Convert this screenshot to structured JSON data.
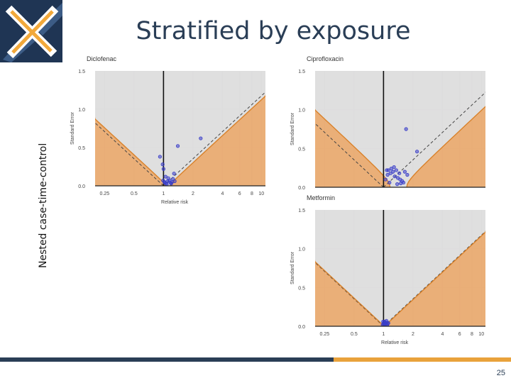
{
  "slide": {
    "title": "Stratified by exposure",
    "side_label": "Nested case-time-control",
    "page_number": "25",
    "colors": {
      "navy": "#2a3e56",
      "accent": "#e9a23b",
      "fill_orange": "#e8a86c",
      "fill_gray": "#dcdcdc",
      "point_blue": "#3a3ec8"
    }
  },
  "chart_data": [
    {
      "type": "scatter",
      "title": "Diclofenac",
      "xlabel": "Relative risk",
      "ylabel": "Standard Error",
      "x_scale": "log",
      "x_ticks": [
        0.25,
        0.5,
        1,
        2,
        4,
        6,
        8,
        10
      ],
      "x_tick_labels": [
        "0.25",
        "0.5",
        "1",
        "2",
        "4",
        "6",
        "8",
        "10"
      ],
      "xlim": [
        0.2,
        11
      ],
      "y_ticks": [
        0.0,
        0.5,
        1.0,
        1.5
      ],
      "y_tick_labels": [
        "0.0",
        "0.5",
        "1.0",
        "1.5"
      ],
      "ylim": [
        0,
        1.5
      ],
      "calibrated_null_log_mean": 0.1,
      "calibrated_null_sd": 0.03,
      "show_x_axis": true,
      "points": [
        [
          0.92,
          0.38
        ],
        [
          0.98,
          0.28
        ],
        [
          1.0,
          0.22
        ],
        [
          1.05,
          0.12
        ],
        [
          0.99,
          0.07
        ],
        [
          1.02,
          0.05
        ],
        [
          1.06,
          0.03
        ],
        [
          1.1,
          0.06
        ],
        [
          1.12,
          0.1
        ],
        [
          1.15,
          0.07
        ],
        [
          1.18,
          0.04
        ],
        [
          1.22,
          0.05
        ],
        [
          1.25,
          0.09
        ],
        [
          1.3,
          0.06
        ],
        [
          1.08,
          0.02
        ],
        [
          1.03,
          0.04
        ],
        [
          1.4,
          0.52
        ],
        [
          1.28,
          0.16
        ],
        [
          2.4,
          0.62
        ],
        [
          1.2,
          0.03
        ]
      ]
    },
    {
      "type": "scatter",
      "title": "Ciprofloxacin",
      "xlabel": "",
      "ylabel": "Standard Error",
      "x_scale": "log",
      "x_ticks": [
        0.25,
        0.5,
        1,
        2,
        4,
        6,
        8,
        10
      ],
      "x_tick_labels": [],
      "xlim": [
        0.2,
        11
      ],
      "y_ticks": [
        0.0,
        0.5,
        1.0,
        1.5
      ],
      "y_tick_labels": [
        "0.0",
        "0.5",
        "1.0",
        "1.5"
      ],
      "ylim": [
        0,
        1.5
      ],
      "calibrated_null_log_mean": 0.35,
      "calibrated_null_sd": 0.1,
      "show_x_axis": false,
      "points": [
        [
          1.05,
          0.1
        ],
        [
          1.1,
          0.16
        ],
        [
          1.12,
          0.22
        ],
        [
          1.18,
          0.18
        ],
        [
          1.2,
          0.24
        ],
        [
          1.25,
          0.2
        ],
        [
          1.3,
          0.14
        ],
        [
          1.35,
          0.22
        ],
        [
          1.4,
          0.12
        ],
        [
          1.45,
          0.18
        ],
        [
          1.5,
          0.05
        ],
        [
          1.55,
          0.08
        ],
        [
          1.6,
          0.06
        ],
        [
          1.65,
          0.2
        ],
        [
          1.28,
          0.26
        ],
        [
          1.15,
          0.06
        ],
        [
          1.75,
          0.16
        ],
        [
          1.48,
          0.1
        ],
        [
          1.7,
          0.75
        ],
        [
          2.2,
          0.46
        ],
        [
          1.38,
          0.04
        ],
        [
          1.08,
          0.22
        ]
      ]
    },
    {
      "type": "scatter",
      "title": "Metformin",
      "xlabel": "Relative risk",
      "ylabel": "Standard Error",
      "x_scale": "log",
      "x_ticks": [
        0.25,
        0.5,
        1,
        2,
        4,
        6,
        8,
        10
      ],
      "x_tick_labels": [
        "0.25",
        "0.5",
        "1",
        "2",
        "4",
        "6",
        "8",
        "10"
      ],
      "xlim": [
        0.2,
        11
      ],
      "y_ticks": [
        0.0,
        0.5,
        1.0,
        1.5
      ],
      "y_tick_labels": [
        "0.0",
        "0.5",
        "1.0",
        "1.5"
      ],
      "ylim": [
        0,
        1.5
      ],
      "calibrated_null_log_mean": 0.02,
      "calibrated_null_sd": 0.01,
      "show_x_axis": true,
      "points": [
        [
          0.98,
          0.02
        ],
        [
          1.0,
          0.04
        ],
        [
          1.02,
          0.06
        ],
        [
          1.04,
          0.03
        ],
        [
          1.06,
          0.05
        ],
        [
          1.08,
          0.02
        ],
        [
          1.1,
          0.04
        ],
        [
          1.03,
          0.01
        ],
        [
          0.99,
          0.06
        ],
        [
          1.05,
          0.03
        ],
        [
          1.07,
          0.07
        ],
        [
          1.01,
          0.02
        ],
        [
          1.09,
          0.01
        ],
        [
          1.12,
          0.04
        ]
      ]
    }
  ]
}
